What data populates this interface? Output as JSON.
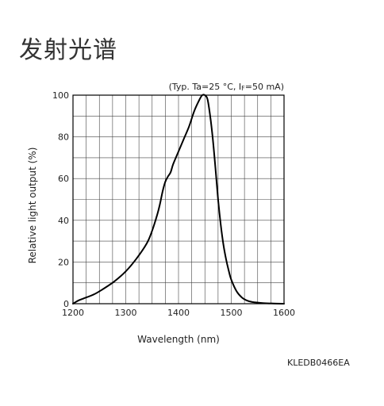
{
  "page": {
    "title": "发射光谱",
    "doc_code": "KLEDB0466EA"
  },
  "chart_data": {
    "type": "line",
    "title": "",
    "conditions": "(Typ. Ta=25 °C, IF=50 mA)",
    "conditions_parts": {
      "prefix": "(Typ. Ta=25 °C, I",
      "sub": "F",
      "suffix": "=50 mA)"
    },
    "xlabel": "Wavelength (nm)",
    "ylabel": "Relative light output (%)",
    "xlim": [
      1200,
      1600
    ],
    "ylim": [
      0,
      100
    ],
    "x_ticks": [
      1200,
      1300,
      1400,
      1500,
      1600
    ],
    "y_ticks": [
      0,
      20,
      40,
      60,
      80,
      100
    ],
    "x_minor_step": 25,
    "y_minor_step": 10,
    "grid": true,
    "series": [
      {
        "name": "",
        "color": "#000000",
        "x": [
          1200,
          1210,
          1220,
          1240,
          1260,
          1280,
          1300,
          1320,
          1340,
          1350,
          1360,
          1365,
          1370,
          1375,
          1380,
          1385,
          1390,
          1400,
          1410,
          1420,
          1430,
          1440,
          1445,
          1450,
          1455,
          1460,
          1465,
          1470,
          1475,
          1480,
          1485,
          1490,
          1495,
          1500,
          1510,
          1520,
          1530,
          1540,
          1560,
          1580,
          1600
        ],
        "values": [
          0,
          1.5,
          2.5,
          4.5,
          7.5,
          11,
          15.5,
          21.5,
          29,
          35,
          43,
          48,
          54,
          58.5,
          61,
          63,
          67,
          73,
          79,
          85,
          92.5,
          98,
          100,
          100,
          98,
          90,
          79,
          65,
          50,
          38,
          28.5,
          21.5,
          16,
          11.5,
          6,
          3,
          1.5,
          0.8,
          0.3,
          0.1,
          0
        ]
      }
    ]
  }
}
